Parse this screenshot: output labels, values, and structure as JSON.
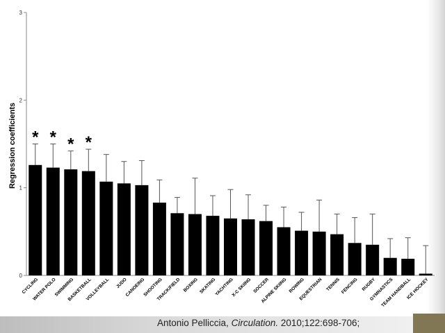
{
  "citation": {
    "author": "Antonio Pelliccia,",
    "journal": "Circulation.",
    "reference": "2010;122:698-706;"
  },
  "colors": {
    "bar": "#000000",
    "axis": "#888888",
    "corner_block": "#827754"
  },
  "chart_data": {
    "type": "bar",
    "title": "",
    "xlabel": "",
    "ylabel": "Regression  coefficients",
    "ylim": [
      0,
      3
    ],
    "yticks": [
      0,
      1,
      2,
      3
    ],
    "grid": false,
    "legend": "none",
    "error_bars": "upper, positive only",
    "categories": [
      "CYCLING",
      "WATER POLO",
      "SWIMMING",
      "BASKETBALL",
      "VOLLEYBALL",
      "JUDO",
      "CANOEING",
      "SHOOTING",
      "TRACK/FIELD",
      "BOXING",
      "SKATING",
      "YACHTING",
      "X-C SKIING",
      "SOCCER",
      "ALPINE SKIING",
      "ROWING",
      "EQUESTRIAN",
      "TENNIS",
      "FENCING",
      "RUGBY",
      "GYMNASTICS",
      "TEAM HANDBALL",
      "ICE HOCKEY"
    ],
    "values": [
      1.26,
      1.23,
      1.21,
      1.19,
      1.07,
      1.05,
      1.03,
      0.83,
      0.71,
      0.7,
      0.68,
      0.65,
      0.64,
      0.62,
      0.55,
      0.51,
      0.5,
      0.47,
      0.37,
      0.35,
      0.2,
      0.19,
      0.02
    ],
    "error_upper": [
      1.5,
      1.5,
      1.42,
      1.44,
      1.38,
      1.3,
      1.31,
      1.09,
      0.89,
      1.11,
      0.91,
      0.98,
      0.92,
      0.8,
      0.78,
      0.72,
      0.86,
      0.7,
      0.66,
      0.7,
      0.42,
      0.43,
      0.34
    ],
    "significance_markers": [
      "*",
      "*",
      "*",
      "*",
      "",
      "",
      "",
      "",
      "",
      "",
      "",
      "",
      "",
      "",
      "",
      "",
      "",
      "",
      "",
      "",
      "",
      "",
      ""
    ]
  }
}
